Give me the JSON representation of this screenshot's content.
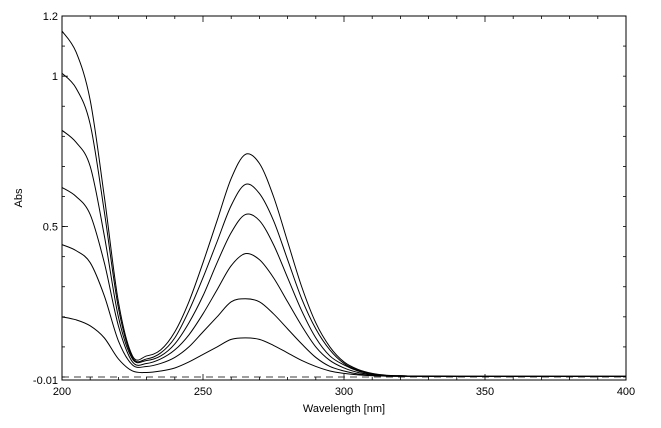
{
  "chart_data": {
    "type": "line",
    "xlabel": "Wavelength [nm]",
    "ylabel": "Abs",
    "xlim": [
      200,
      400
    ],
    "ylim": [
      -0.01,
      1.2
    ],
    "x_ticks": [
      200,
      250,
      300,
      350,
      400
    ],
    "x_tick_labels": [
      "200",
      "250",
      "300",
      "350",
      "400"
    ],
    "y_ticks": [
      -0.01,
      0.5,
      1,
      1.2
    ],
    "y_tick_labels": [
      "-0.01",
      "0.5",
      "1",
      "1.2"
    ],
    "grid": false,
    "legend": "none",
    "baseline": {
      "style": "dashed",
      "y": 0
    },
    "x": [
      200,
      205,
      210,
      215,
      220,
      225,
      230,
      235,
      240,
      245,
      250,
      255,
      260,
      265,
      270,
      275,
      280,
      285,
      290,
      295,
      300,
      305,
      310,
      315,
      320,
      325,
      330,
      340,
      350,
      360,
      380,
      400
    ],
    "series": [
      {
        "values": [
          1.15,
          1.08,
          0.92,
          0.6,
          0.25,
          0.07,
          0.07,
          0.09,
          0.15,
          0.25,
          0.38,
          0.52,
          0.66,
          0.74,
          0.71,
          0.6,
          0.45,
          0.3,
          0.18,
          0.1,
          0.05,
          0.025,
          0.012,
          0.006,
          0.004,
          0.003,
          0.003,
          0.002,
          0.002,
          0.002,
          0.002,
          0.002
        ]
      },
      {
        "values": [
          1.01,
          0.96,
          0.84,
          0.55,
          0.23,
          0.065,
          0.06,
          0.08,
          0.13,
          0.22,
          0.33,
          0.45,
          0.57,
          0.64,
          0.61,
          0.52,
          0.39,
          0.26,
          0.16,
          0.09,
          0.045,
          0.022,
          0.011,
          0.005,
          0.004,
          0.003,
          0.003,
          0.002,
          0.002,
          0.002,
          0.002,
          0.002
        ]
      },
      {
        "values": [
          0.82,
          0.78,
          0.7,
          0.47,
          0.2,
          0.06,
          0.055,
          0.07,
          0.11,
          0.18,
          0.27,
          0.38,
          0.48,
          0.54,
          0.52,
          0.44,
          0.33,
          0.22,
          0.13,
          0.07,
          0.04,
          0.02,
          0.01,
          0.005,
          0.004,
          0.003,
          0.003,
          0.002,
          0.002,
          0.002,
          0.002,
          0.002
        ]
      },
      {
        "values": [
          0.63,
          0.6,
          0.54,
          0.38,
          0.17,
          0.05,
          0.045,
          0.06,
          0.09,
          0.14,
          0.21,
          0.29,
          0.37,
          0.41,
          0.39,
          0.33,
          0.25,
          0.17,
          0.1,
          0.055,
          0.03,
          0.015,
          0.008,
          0.004,
          0.003,
          0.003,
          0.002,
          0.002,
          0.002,
          0.002,
          0.002,
          0.002
        ]
      },
      {
        "values": [
          0.44,
          0.42,
          0.38,
          0.27,
          0.12,
          0.04,
          0.035,
          0.045,
          0.065,
          0.1,
          0.15,
          0.2,
          0.25,
          0.26,
          0.25,
          0.21,
          0.16,
          0.11,
          0.065,
          0.035,
          0.02,
          0.01,
          0.006,
          0.003,
          0.003,
          0.002,
          0.002,
          0.002,
          0.002,
          0.002,
          0.002,
          0.002
        ]
      },
      {
        "values": [
          0.2,
          0.19,
          0.17,
          0.13,
          0.06,
          0.02,
          0.015,
          0.02,
          0.03,
          0.05,
          0.075,
          0.1,
          0.125,
          0.13,
          0.125,
          0.105,
          0.08,
          0.055,
          0.035,
          0.02,
          0.012,
          0.007,
          0.004,
          0.003,
          0.002,
          0.002,
          0.002,
          0.002,
          0.002,
          0.002,
          0.002,
          0.002
        ]
      }
    ]
  }
}
